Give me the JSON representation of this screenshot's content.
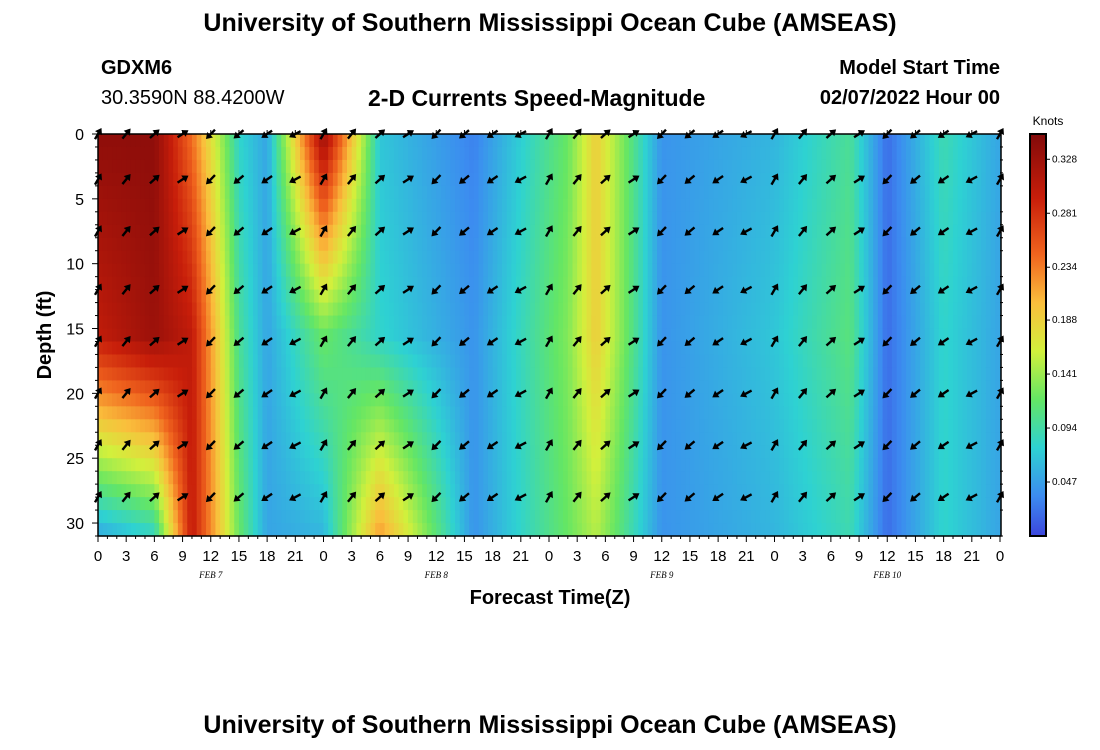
{
  "header": {
    "title": "University of Southern Mississippi Ocean Cube (AMSEAS)",
    "station_id": "GDXM6",
    "location": "30.3590N  88.4200W",
    "subtitle": "2-D Currents Speed-Magnitude",
    "model_start_label": "Model Start Time",
    "model_start_value": "02/07/2022 Hour 00"
  },
  "footer": {
    "title_repeat": "University of Southern Mississippi Ocean Cube (AMSEAS)"
  },
  "chart_data": {
    "type": "heatmap",
    "xlabel": "Forecast Time(Z)",
    "ylabel": "Depth (ft)",
    "x_range_hours": [
      0,
      96
    ],
    "ylim": [
      0,
      31
    ],
    "x_tick_labels": [
      "0",
      "3",
      "6",
      "9",
      "12",
      "15",
      "18",
      "21",
      "0",
      "3",
      "6",
      "9",
      "12",
      "15",
      "18",
      "21",
      "0",
      "3",
      "6",
      "9",
      "12",
      "15",
      "18",
      "21",
      "0",
      "3",
      "6",
      "9",
      "12",
      "15",
      "18",
      "21",
      "0"
    ],
    "y_ticks": [
      "0",
      "5",
      "10",
      "15",
      "20",
      "25",
      "30"
    ],
    "day_labels": [
      {
        "label": "FEB 7",
        "hour": 12
      },
      {
        "label": "FEB 8",
        "hour": 36
      },
      {
        "label": "FEB 9",
        "hour": 60
      },
      {
        "label": "FEB 10",
        "hour": 84
      }
    ],
    "colorbar": {
      "label": "Knots",
      "min": 0.0,
      "max": 0.35,
      "ticks": [
        "0.328",
        "0.281",
        "0.234",
        "0.188",
        "0.141",
        "0.094",
        "0.047"
      ],
      "tick_values": [
        0.328,
        0.281,
        0.234,
        0.188,
        0.141,
        0.094,
        0.047
      ]
    },
    "vector_depths_ft": [
      0,
      3.5,
      7.5,
      12,
      16,
      20,
      24,
      28
    ],
    "vector_hours": [
      0,
      3,
      6,
      9,
      12,
      15,
      18,
      21,
      24,
      27,
      30,
      33,
      36,
      39,
      42,
      45,
      48,
      51,
      54,
      57,
      60,
      63,
      66,
      69,
      72,
      75,
      78,
      81,
      84,
      87,
      90,
      93,
      96
    ],
    "speed_timeseries_knots": [
      {
        "hour": 0,
        "surface": 0.34,
        "mid": 0.3,
        "bottom": 0.05
      },
      {
        "hour": 6,
        "surface": 0.34,
        "mid": 0.33,
        "bottom": 0.08
      },
      {
        "hour": 10,
        "surface": 0.24,
        "mid": 0.3,
        "bottom": 0.3
      },
      {
        "hour": 15,
        "surface": 0.08,
        "mid": 0.1,
        "bottom": 0.12
      },
      {
        "hour": 18,
        "surface": 0.05,
        "mid": 0.05,
        "bottom": 0.05
      },
      {
        "hour": 24,
        "surface": 0.33,
        "mid": 0.12,
        "bottom": 0.06
      },
      {
        "hour": 30,
        "surface": 0.07,
        "mid": 0.08,
        "bottom": 0.22
      },
      {
        "hour": 40,
        "surface": 0.03,
        "mid": 0.04,
        "bottom": 0.04
      },
      {
        "hour": 50,
        "surface": 0.12,
        "mid": 0.13,
        "bottom": 0.12
      },
      {
        "hour": 53,
        "surface": 0.19,
        "mid": 0.19,
        "bottom": 0.15
      },
      {
        "hour": 60,
        "surface": 0.04,
        "mid": 0.04,
        "bottom": 0.04
      },
      {
        "hour": 72,
        "surface": 0.06,
        "mid": 0.07,
        "bottom": 0.06
      },
      {
        "hour": 80,
        "surface": 0.1,
        "mid": 0.11,
        "bottom": 0.09
      },
      {
        "hour": 84,
        "surface": 0.02,
        "mid": 0.02,
        "bottom": 0.02
      },
      {
        "hour": 90,
        "surface": 0.09,
        "mid": 0.08,
        "bottom": 0.08
      },
      {
        "hour": 96,
        "surface": 0.05,
        "mid": 0.05,
        "bottom": 0.05
      }
    ]
  },
  "colors": {
    "background": "#ffffff",
    "arrow": "#000000",
    "frame": "#000000"
  }
}
